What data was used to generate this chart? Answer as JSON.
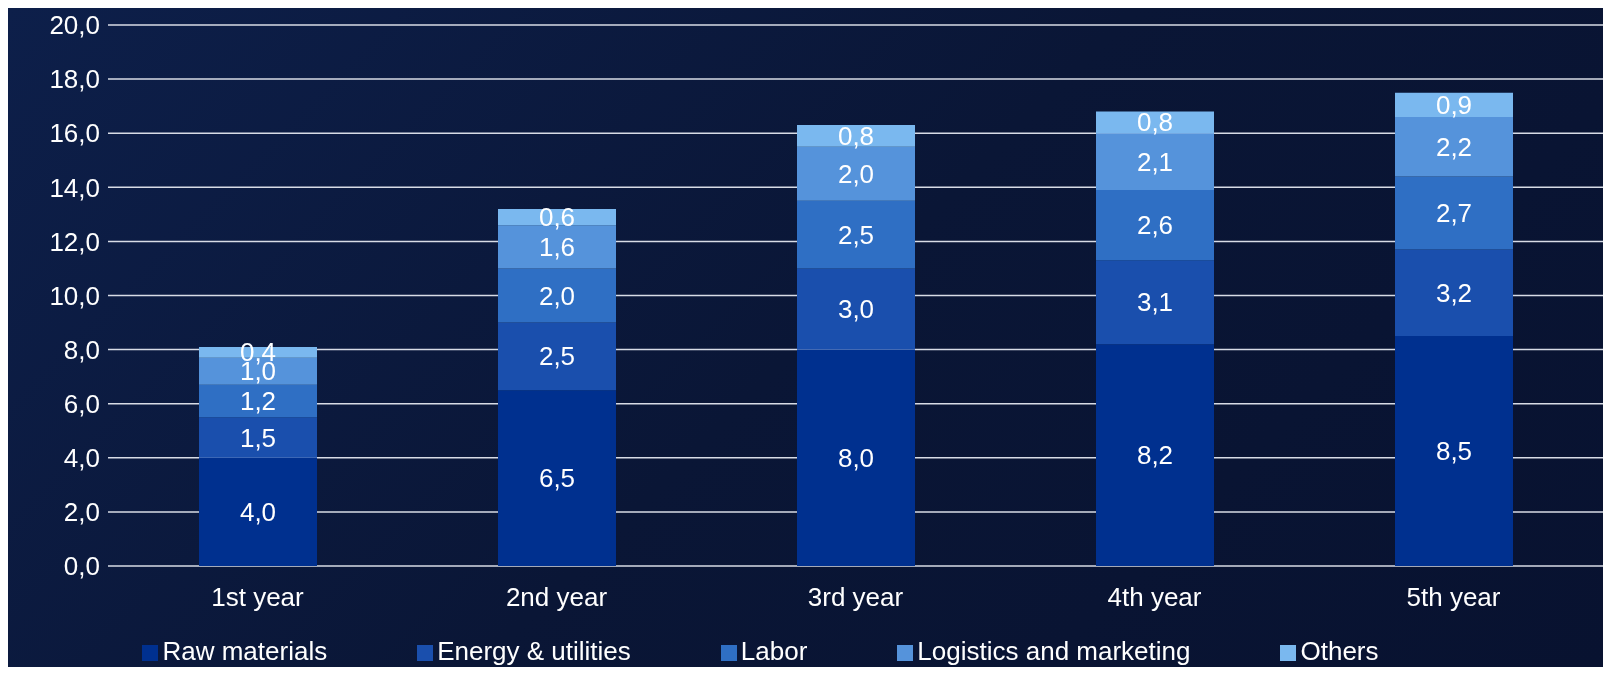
{
  "chart_data": {
    "type": "bar",
    "stacked": true,
    "categories": [
      "1st year",
      "2nd year",
      "3rd year",
      "4th year",
      "5th year"
    ],
    "series": [
      {
        "name": "Raw materials",
        "color": "#00308f",
        "values": [
          4.0,
          6.5,
          8.0,
          8.2,
          8.5
        ],
        "value_labels": [
          "4,0",
          "6,5",
          "8,0",
          "8,2",
          "8,5"
        ]
      },
      {
        "name": "Energy & utilities",
        "color": "#1a4fad",
        "values": [
          1.5,
          2.5,
          3.0,
          3.1,
          3.2
        ],
        "value_labels": [
          "1,5",
          "2,5",
          "3,0",
          "3,1",
          "3,2"
        ]
      },
      {
        "name": "Labor",
        "color": "#2f6fc4",
        "values": [
          1.2,
          2.0,
          2.5,
          2.6,
          2.7
        ],
        "value_labels": [
          "1,2",
          "2,0",
          "2,5",
          "2,6",
          "2,7"
        ]
      },
      {
        "name": "Logistics and marketing",
        "color": "#5593db",
        "values": [
          1.0,
          1.6,
          2.0,
          2.1,
          2.2
        ],
        "value_labels": [
          "1,0",
          "1,6",
          "2,0",
          "2,1",
          "2,2"
        ]
      },
      {
        "name": "Others",
        "color": "#7ab8ef",
        "values": [
          0.4,
          0.6,
          0.8,
          0.8,
          0.9
        ],
        "value_labels": [
          "0,4",
          "0,6",
          "0,8",
          "0,8",
          "0,9"
        ]
      }
    ],
    "ylim": [
      0,
      20
    ],
    "yticks": [
      {
        "value": 0,
        "label": "0,0"
      },
      {
        "value": 2,
        "label": "2,0"
      },
      {
        "value": 4,
        "label": "4,0"
      },
      {
        "value": 6,
        "label": "6,0"
      },
      {
        "value": 8,
        "label": "8,0"
      },
      {
        "value": 10,
        "label": "10,0"
      },
      {
        "value": 12,
        "label": "12,0"
      },
      {
        "value": 14,
        "label": "14,0"
      },
      {
        "value": 16,
        "label": "16,0"
      },
      {
        "value": 18,
        "label": "18,0"
      },
      {
        "value": 20,
        "label": "20,0"
      }
    ],
    "grid": "y",
    "legend": "bottom"
  }
}
